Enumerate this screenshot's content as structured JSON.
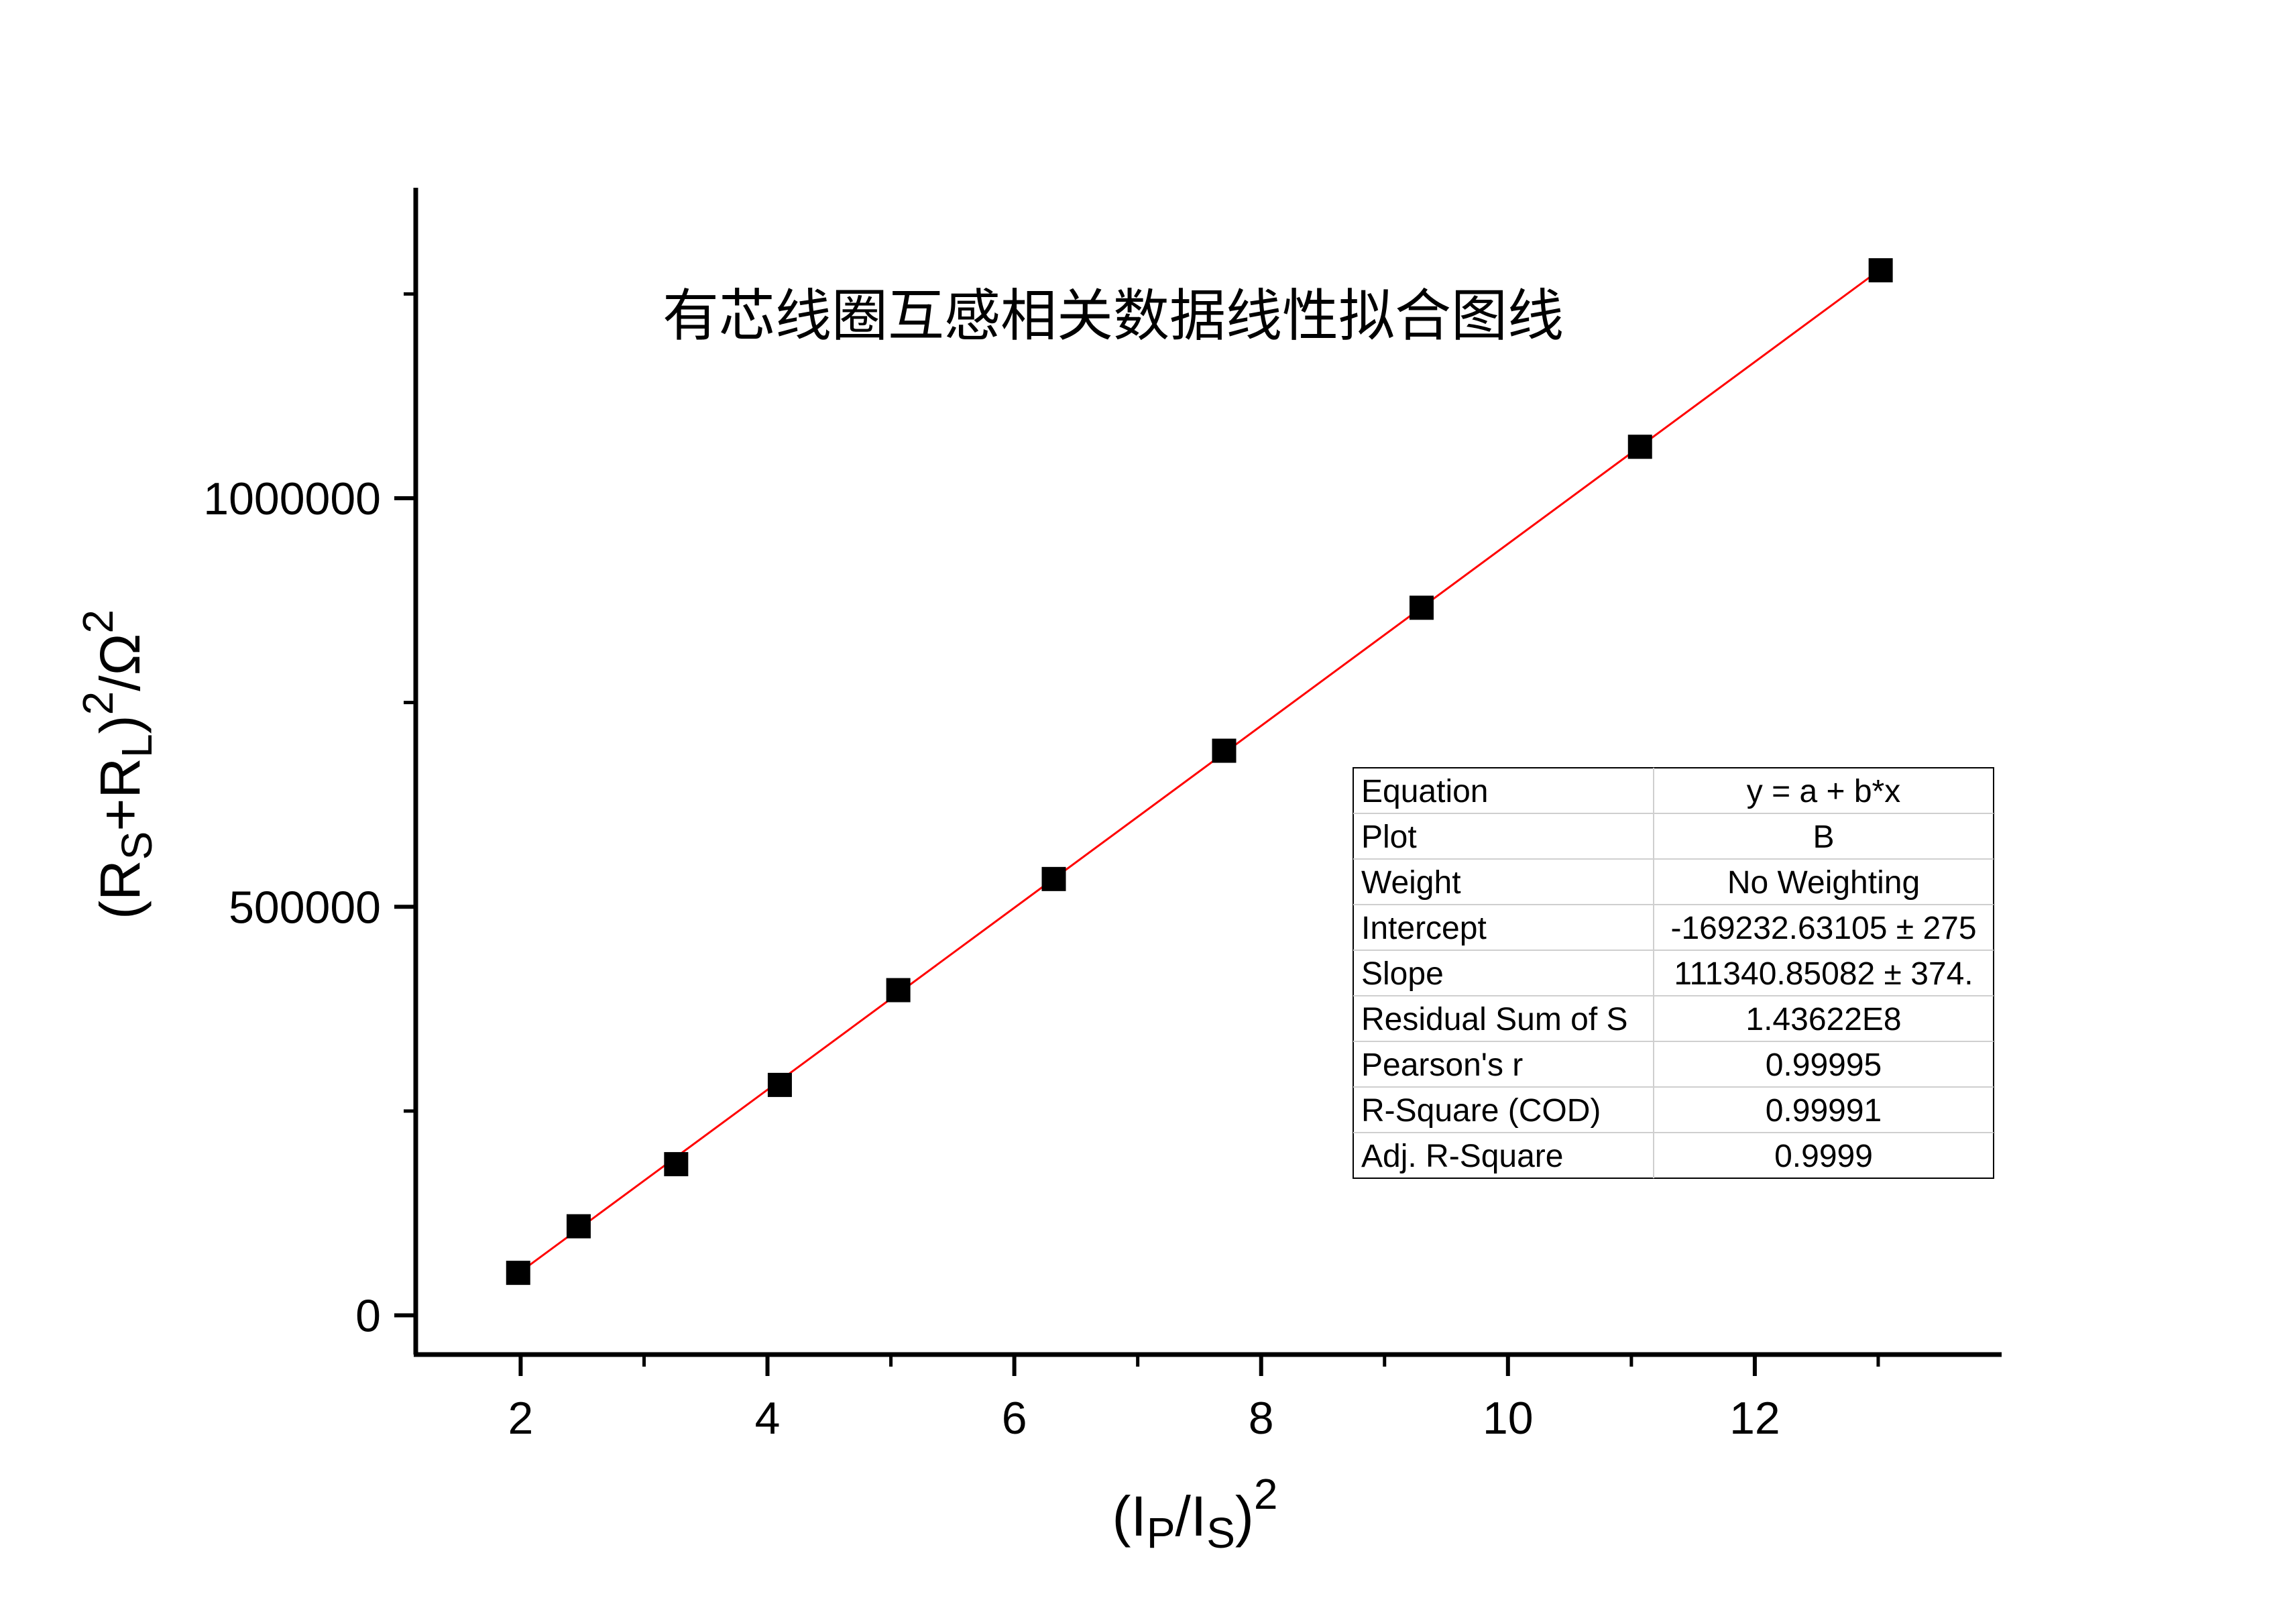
{
  "chart_data": {
    "type": "scatter",
    "title": "有芯线圈互感相关数据线性拟合图线",
    "xlabel": {
      "base": "(I",
      "sub1": "P",
      "mid": "/I",
      "sub2": "S",
      "close": ")",
      "sup": "2"
    },
    "ylabel": {
      "open": "(R",
      "sub1": "S",
      "mid": "+R",
      "sub2": "L",
      "close": ")",
      "sup1": "2",
      "unit": "/Ω",
      "sup2": "2"
    },
    "x_ticks": [
      "2",
      "4",
      "6",
      "8",
      "10",
      "12"
    ],
    "y_ticks": [
      "0",
      "500000",
      "1000000"
    ],
    "xlim": [
      1.15,
      14.0
    ],
    "ylim": [
      -48000,
      1380000
    ],
    "series": [
      {
        "x": [
          1.98,
          2.47,
          3.26,
          4.1,
          5.06,
          6.32,
          7.7,
          9.3,
          11.07,
          13.02
        ],
        "y": [
          52000,
          109000,
          185000,
          282000,
          398000,
          534000,
          691000,
          866000,
          1063000,
          1279000
        ]
      }
    ],
    "fit_line": {
      "intercept": -169232.63105,
      "slope": 111340.85082,
      "x_range": [
        1.98,
        13.02
      ],
      "color": "#ff0000"
    },
    "marker_color": "#000000",
    "grid": false,
    "stats_table": {
      "position": "lower-right",
      "rows": [
        {
          "label": "Equation",
          "value": "y = a + b*x"
        },
        {
          "label": "Plot",
          "value": "B"
        },
        {
          "label": "Weight",
          "value": "No Weighting"
        },
        {
          "label": "Intercept",
          "value": "-169232.63105 ± 275"
        },
        {
          "label": "Slope",
          "value": "111340.85082 ± 374."
        },
        {
          "label": "Residual Sum of S",
          "value": "1.43622E8"
        },
        {
          "label": "Pearson's r",
          "value": "0.99995"
        },
        {
          "label": "R-Square (COD)",
          "value": "0.99991"
        },
        {
          "label": "Adj. R-Square",
          "value": "0.9999"
        }
      ]
    }
  }
}
